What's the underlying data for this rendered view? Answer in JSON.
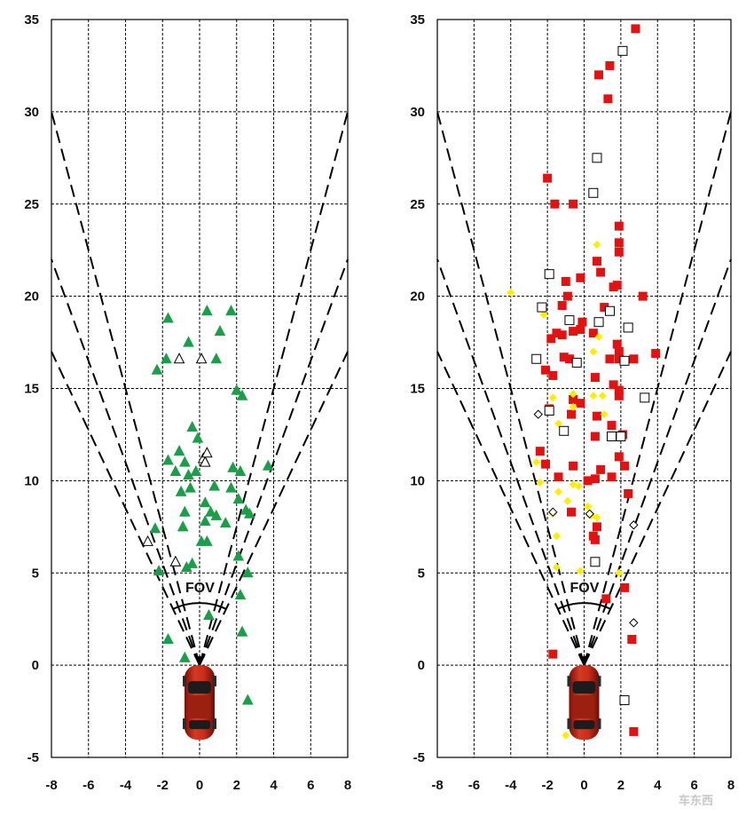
{
  "chart_data": [
    {
      "type": "scatter",
      "x_range": [
        -8,
        8
      ],
      "y_range": [
        -5,
        35
      ],
      "x_ticks": [
        -8,
        -6,
        -4,
        -2,
        0,
        2,
        4,
        6,
        8
      ],
      "y_ticks": [
        -5,
        0,
        5,
        10,
        15,
        20,
        25,
        30,
        35
      ],
      "fov_label": "FOV",
      "fov_lines_top": [
        -8,
        -8,
        -8,
        8,
        8,
        8
      ],
      "fov_lines_y_at_edge": [
        30,
        22,
        17,
        30,
        22,
        17
      ],
      "series": [
        {
          "marker": "filled-triangle",
          "color": "#1a9e4a",
          "points": [
            [
              -1.7,
              18.8
            ],
            [
              0.4,
              19.2
            ],
            [
              1.7,
              19.2
            ],
            [
              1.1,
              18.1
            ],
            [
              -0.6,
              17.5
            ],
            [
              -1.8,
              16.6
            ],
            [
              -2.3,
              16
            ],
            [
              0.9,
              16.6
            ],
            [
              2,
              14.9
            ],
            [
              2.3,
              14.6
            ],
            [
              -0.4,
              12.9
            ],
            [
              -0.1,
              12.3
            ],
            [
              -1.7,
              11.1
            ],
            [
              -1.1,
              11.6
            ],
            [
              -0.8,
              11
            ],
            [
              -1.3,
              10.5
            ],
            [
              -0.6,
              10.3
            ],
            [
              -0.2,
              10.5
            ],
            [
              1.8,
              10.7
            ],
            [
              2.2,
              10.5
            ],
            [
              3.7,
              10.8
            ],
            [
              -1,
              9.4
            ],
            [
              0.8,
              9.7
            ],
            [
              -0.5,
              9.6
            ],
            [
              1.7,
              9.6
            ],
            [
              2.1,
              9
            ],
            [
              0.3,
              8.8
            ],
            [
              2.5,
              8.4
            ],
            [
              2.7,
              8.2
            ],
            [
              -0.8,
              8.3
            ],
            [
              0.6,
              8.3
            ],
            [
              0.9,
              8.1
            ],
            [
              0.3,
              7.8
            ],
            [
              1.4,
              7.7
            ],
            [
              -0.9,
              7.5
            ],
            [
              -2.4,
              7.4
            ],
            [
              0.1,
              6.7
            ],
            [
              0.4,
              6.7
            ],
            [
              -1.3,
              5.6
            ],
            [
              -0.7,
              5.3
            ],
            [
              -0.4,
              5.5
            ],
            [
              2.1,
              5.9
            ],
            [
              -2.2,
              5.1
            ],
            [
              2.6,
              5
            ],
            [
              2.2,
              3.8
            ],
            [
              0.5,
              2.7
            ],
            [
              -1.7,
              1.4
            ],
            [
              2.3,
              1.8
            ],
            [
              -0.8,
              0.4
            ],
            [
              2.6,
              -1.9
            ]
          ]
        },
        {
          "marker": "open-triangle",
          "color": "#000000",
          "points": [
            [
              -1.1,
              16.6
            ],
            [
              0.1,
              16.6
            ],
            [
              0.2,
              11.2
            ],
            [
              0.3,
              11
            ],
            [
              0.4,
              11.5
            ],
            [
              -2.8,
              6.7
            ],
            [
              -1.3,
              5.6
            ]
          ]
        },
        {
          "marker": "filled-square",
          "color": "#e31212",
          "points": [
            [
              2.8,
              34.5
            ],
            [
              1.4,
              32.5
            ],
            [
              0.8,
              32
            ],
            [
              1.3,
              30.7
            ],
            [
              -2,
              26.4
            ],
            [
              -1.6,
              25
            ],
            [
              -0.6,
              25
            ],
            [
              1.9,
              23.8
            ],
            [
              1.9,
              22.9
            ],
            [
              1.9,
              22.4
            ],
            [
              0.7,
              21.9
            ],
            [
              0.9,
              21.3
            ],
            [
              -0.2,
              21
            ],
            [
              1.6,
              20.5
            ],
            [
              1.8,
              20.6
            ],
            [
              -1,
              20.8
            ],
            [
              -0.9,
              20
            ],
            [
              3.2,
              20
            ],
            [
              -1.2,
              19.5
            ],
            [
              -0.1,
              18.6
            ],
            [
              1.1,
              19.4
            ],
            [
              0.5,
              18
            ],
            [
              -1.8,
              17.7
            ],
            [
              -1.5,
              18
            ],
            [
              -1.2,
              17.9
            ],
            [
              -0.6,
              18.1
            ],
            [
              -0.2,
              18.2
            ],
            [
              1.8,
              17.4
            ],
            [
              1.9,
              17
            ],
            [
              3.9,
              16.9
            ],
            [
              -1.1,
              16.7
            ],
            [
              -0.8,
              16.6
            ],
            [
              1.4,
              16.6
            ],
            [
              1.9,
              16.6
            ],
            [
              2.7,
              16.6
            ],
            [
              -2.1,
              16
            ],
            [
              -1.7,
              15.7
            ],
            [
              0.6,
              15.6
            ],
            [
              1.6,
              15.2
            ],
            [
              -0.6,
              14.4
            ],
            [
              1.9,
              14.9
            ],
            [
              1.9,
              14.6
            ],
            [
              -1.9,
              13.9
            ],
            [
              -0.2,
              14.2
            ],
            [
              -0.7,
              13.6
            ],
            [
              0.7,
              13.5
            ],
            [
              1.5,
              13
            ],
            [
              2.1,
              12.5
            ],
            [
              0.6,
              12.4
            ],
            [
              -2.4,
              11.6
            ],
            [
              -2.1,
              10.9
            ],
            [
              1.9,
              11.3
            ],
            [
              -0.6,
              10.8
            ],
            [
              0.9,
              10.6
            ],
            [
              -1.4,
              10.2
            ],
            [
              0.2,
              10
            ],
            [
              0.6,
              10.1
            ],
            [
              1.5,
              10.2
            ],
            [
              2.2,
              10.8
            ],
            [
              2.4,
              9.3
            ],
            [
              -0.7,
              8.3
            ],
            [
              0.7,
              7.5
            ],
            [
              0.5,
              7
            ],
            [
              0.6,
              6.8
            ],
            [
              2.2,
              4.2
            ],
            [
              1.2,
              3.6
            ],
            [
              -1.7,
              0.6
            ],
            [
              2.6,
              1.4
            ],
            [
              2.7,
              -3.6
            ]
          ]
        },
        {
          "marker": "filled-diamond",
          "color": "#ffee00",
          "points": [
            [
              -4,
              20.2
            ],
            [
              0.7,
              22.8
            ],
            [
              -2.2,
              19
            ],
            [
              0.8,
              17.8
            ],
            [
              0.5,
              17
            ],
            [
              -1.7,
              14.5
            ],
            [
              -0.6,
              14.7
            ],
            [
              0.5,
              14.6
            ],
            [
              1,
              14.6
            ],
            [
              -0.6,
              14
            ],
            [
              1.1,
              13.6
            ],
            [
              -1.4,
              13.1
            ],
            [
              -2.6,
              11
            ],
            [
              -0.6,
              9.8
            ],
            [
              -0.3,
              9.7
            ],
            [
              -2.4,
              9.9
            ],
            [
              -1.4,
              9.4
            ],
            [
              -1.7,
              8.2
            ],
            [
              -0.9,
              8.9
            ],
            [
              0.2,
              8.6
            ],
            [
              0.4,
              8.1
            ],
            [
              0.7,
              8
            ],
            [
              -1.5,
              7
            ],
            [
              -1.5,
              5.3
            ],
            [
              -0.2,
              5.1
            ],
            [
              1.9,
              5
            ],
            [
              -1,
              -3.8
            ]
          ]
        },
        {
          "marker": "open-square",
          "color": "#000000",
          "points": [
            [
              2.1,
              33.3
            ],
            [
              0.7,
              27.5
            ],
            [
              0.5,
              25.6
            ],
            [
              -1.9,
              21.2
            ],
            [
              -2.3,
              19.4
            ],
            [
              -0.8,
              18.7
            ],
            [
              1.4,
              19.2
            ],
            [
              0.8,
              18.6
            ],
            [
              2.4,
              18.3
            ],
            [
              -2.6,
              16.6
            ],
            [
              -0.4,
              16.4
            ],
            [
              2.2,
              16.5
            ],
            [
              -1.9,
              13.8
            ],
            [
              3.3,
              14.5
            ],
            [
              -1.1,
              12.7
            ],
            [
              1.5,
              12.4
            ],
            [
              2,
              12.4
            ],
            [
              0.6,
              5.6
            ],
            [
              2.2,
              -1.9
            ]
          ]
        },
        {
          "marker": "open-diamond",
          "color": "#000000",
          "points": [
            [
              -2.5,
              13.6
            ],
            [
              -1.7,
              8.3
            ],
            [
              0.3,
              8.2
            ],
            [
              2.7,
              7.6
            ],
            [
              2.7,
              2.3
            ]
          ]
        }
      ]
    },
    {
      "watermark": "车东西"
    }
  ]
}
